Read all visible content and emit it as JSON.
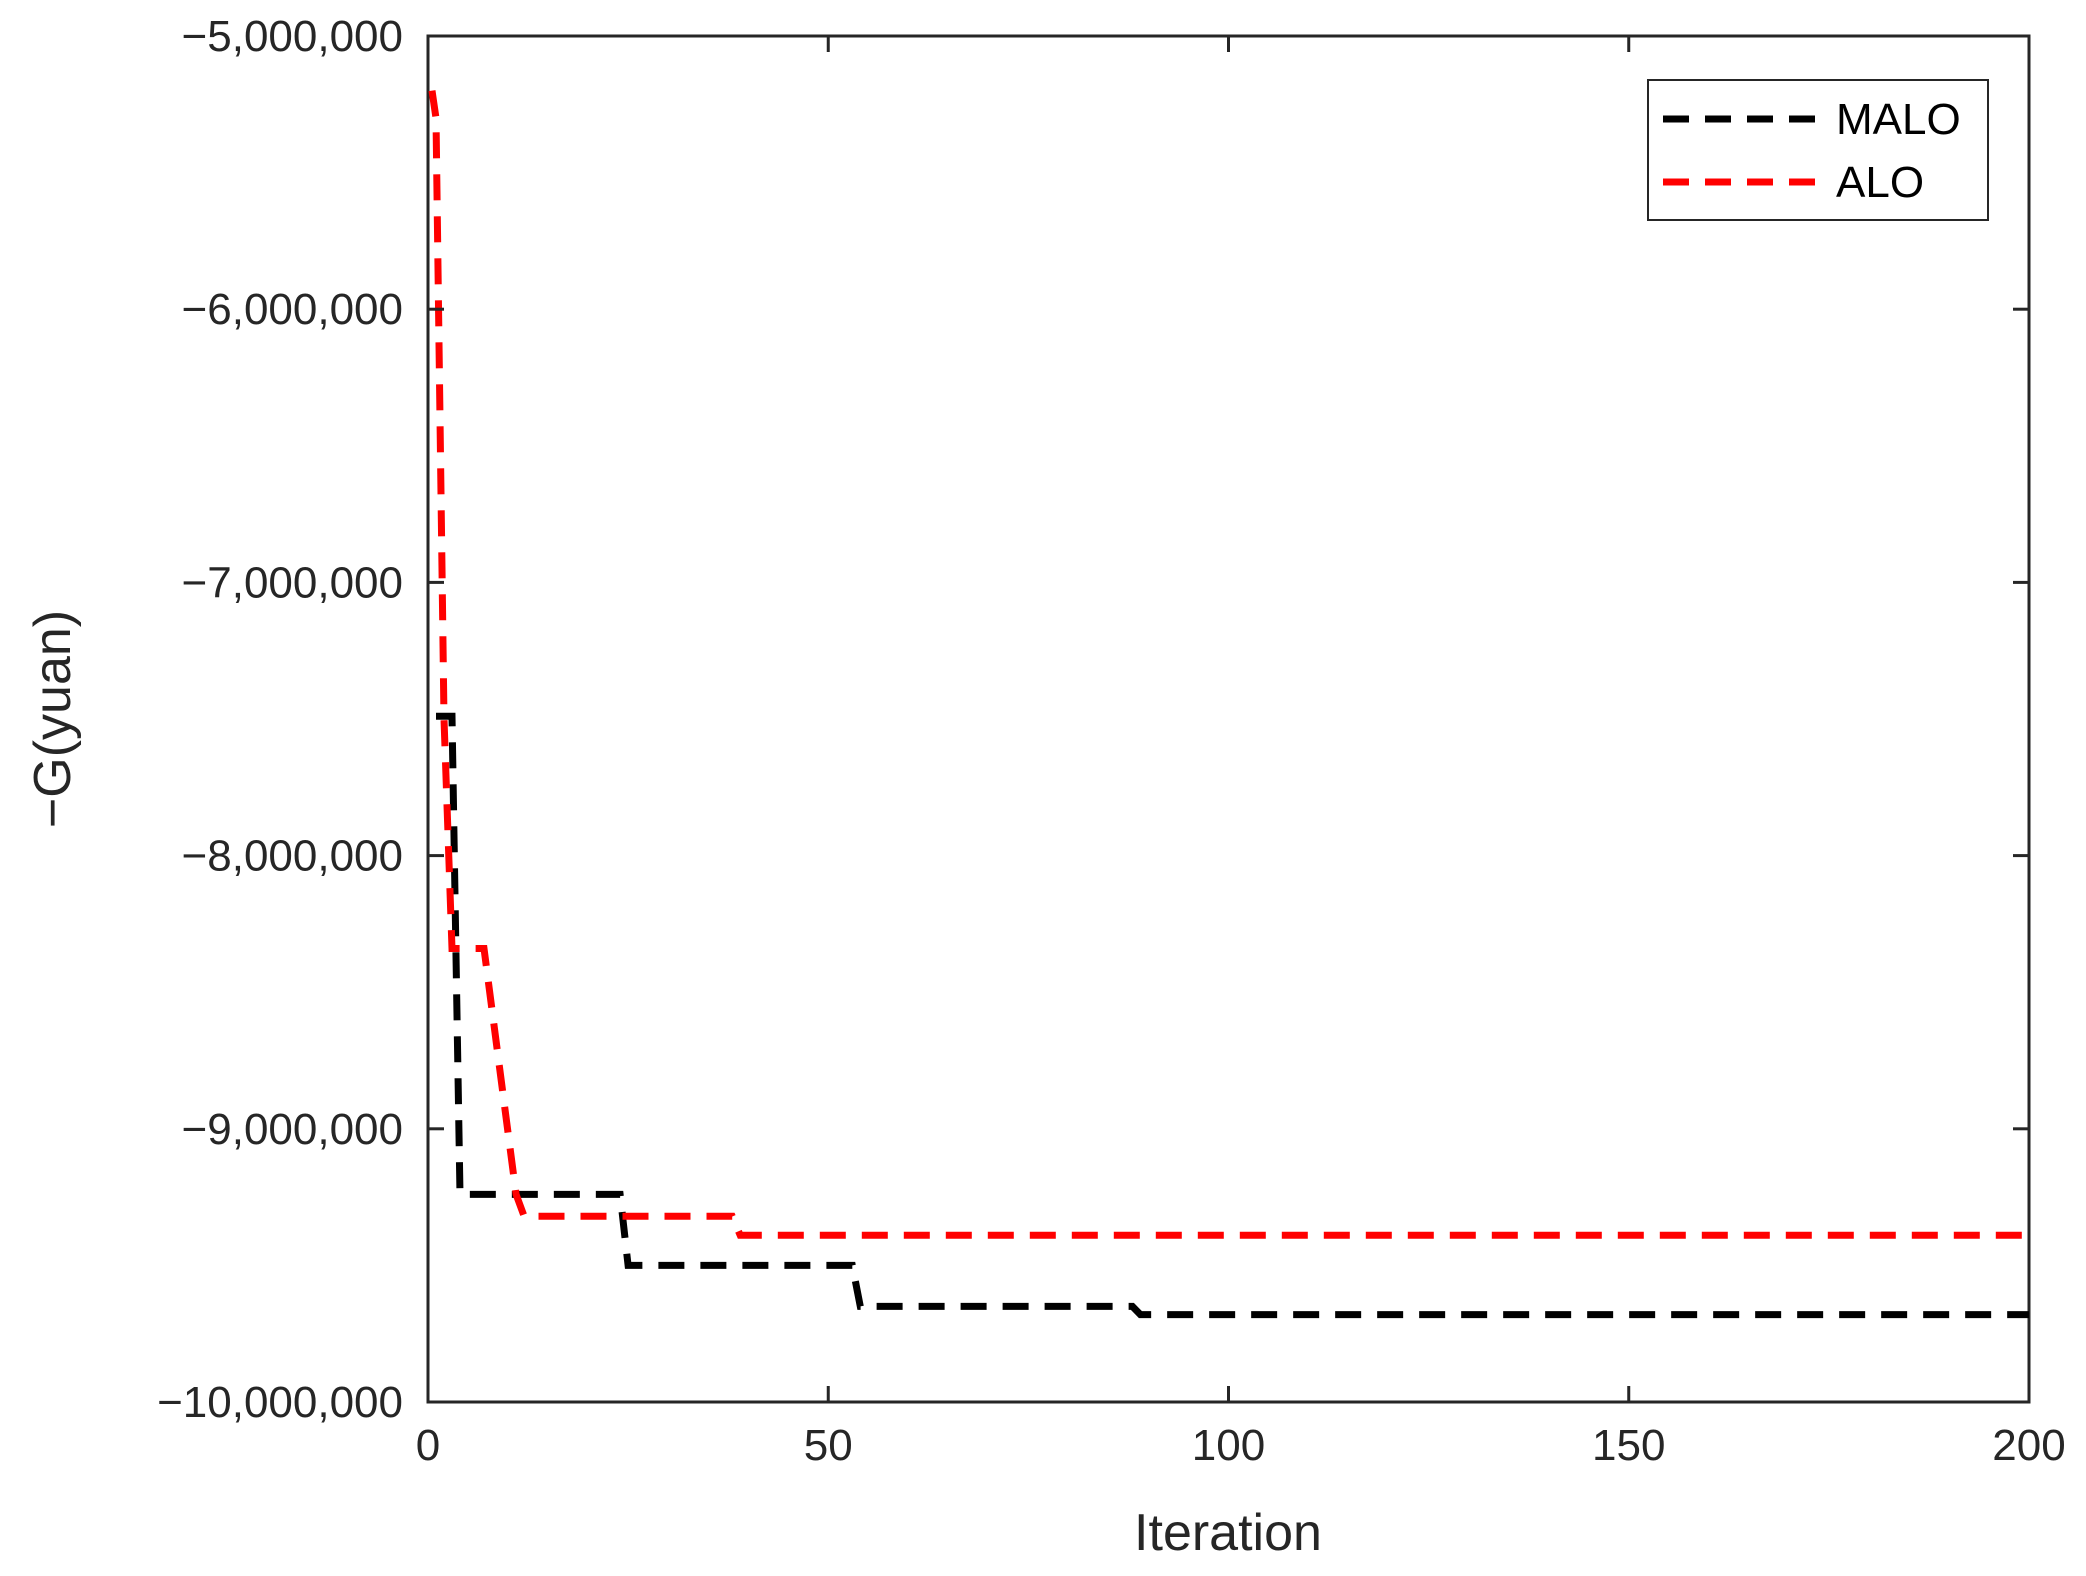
{
  "chart_data": {
    "type": "line",
    "xlabel": "Iteration",
    "ylabel": "−G(yuan)",
    "xlim": [
      0,
      200
    ],
    "ylim": [
      -10000000,
      -5000000
    ],
    "xticks": [
      0,
      50,
      100,
      150,
      200
    ],
    "xtick_labels": [
      "0",
      "50",
      "100",
      "150",
      "200"
    ],
    "yticks": [
      -10000000,
      -9000000,
      -8000000,
      -7000000,
      -6000000,
      -5000000
    ],
    "ytick_labels": [
      "−10,000,000",
      "−9,000,000",
      "−8,000,000",
      "−7,000,000",
      "−6,000,000",
      "−5,000,000"
    ],
    "grid": false,
    "legend_position": "top-right",
    "series": [
      {
        "name": "MALO",
        "color": "#000000",
        "line_style": "dashed",
        "x": [
          1,
          3,
          4,
          24,
          25,
          53,
          54,
          88,
          89,
          200
        ],
        "y": [
          -7490000,
          -7490000,
          -9240000,
          -9240000,
          -9500000,
          -9500000,
          -9650000,
          -9650000,
          -9680000,
          -9680000
        ]
      },
      {
        "name": "ALO",
        "color": "#ff0000",
        "line_style": "dashed",
        "x": [
          0.5,
          1,
          2,
          3,
          7,
          11,
          12,
          38,
          39,
          200
        ],
        "y": [
          -5200000,
          -5300000,
          -7500000,
          -8340000,
          -8340000,
          -9240000,
          -9320000,
          -9320000,
          -9390000,
          -9390000
        ]
      }
    ]
  }
}
